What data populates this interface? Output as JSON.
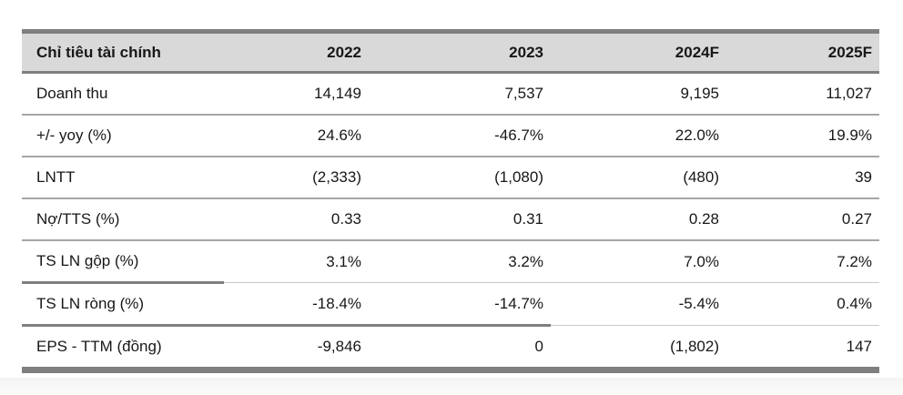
{
  "table": {
    "columns": [
      {
        "label": "Chỉ tiêu tài chính",
        "align": "left"
      },
      {
        "label": "2022",
        "align": "right"
      },
      {
        "label": "2023",
        "align": "right"
      },
      {
        "label": "2024F",
        "align": "right"
      },
      {
        "label": "2025F",
        "align": "right"
      }
    ],
    "rows": [
      {
        "label": "Doanh thu",
        "values": [
          "14,149",
          "7,537",
          "9,195",
          "11,027"
        ],
        "border": "normal"
      },
      {
        "label": "+/- yoy (%)",
        "values": [
          "24.6%",
          "-46.7%",
          "22.0%",
          "19.9%"
        ],
        "border": "normal"
      },
      {
        "label": "LNTT",
        "values": [
          "(2,333)",
          "(1,080)",
          "(480)",
          "39"
        ],
        "border": "normal"
      },
      {
        "label": "Nợ/TTS (%)",
        "values": [
          "0.33",
          "0.31",
          "0.28",
          "0.27"
        ],
        "border": "normal"
      },
      {
        "label": "TS LN gộp (%)",
        "values": [
          "3.1%",
          "3.2%",
          "7.0%",
          "7.2%"
        ],
        "border": "thick-first-1"
      },
      {
        "label": "TS LN ròng (%)",
        "values": [
          "-18.4%",
          "-14.7%",
          "-5.4%",
          "0.4%"
        ],
        "border": "thick-first-3"
      },
      {
        "label": "EPS - TTM (đồng)",
        "values": [
          "-9,846",
          "0",
          "(1,802)",
          "147"
        ],
        "border": "none"
      }
    ]
  },
  "colors": {
    "accent_bar": "#7f7f7f",
    "header_background": "#d9d9d9",
    "row_separator": "#a6a6a6",
    "text": "#171717",
    "footer_strip": "#f4f5f4"
  }
}
